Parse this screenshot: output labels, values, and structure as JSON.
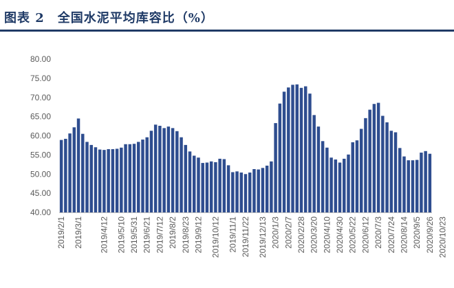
{
  "figure_title": "图表 2　全国水泥平均库容比（%）",
  "chart_data": {
    "type": "bar",
    "title": "",
    "xlabel": "",
    "ylabel": "",
    "ylim": [
      40,
      80
    ],
    "y_ticks": [
      "40.00",
      "45.00",
      "50.00",
      "55.00",
      "60.00",
      "65.00",
      "70.00",
      "75.00",
      "80.00"
    ],
    "y_tick_values": [
      40,
      45,
      50,
      55,
      60,
      65,
      70,
      75,
      80
    ],
    "bar_color": "#2e4d8f",
    "grid": false,
    "x_tick_labels": [
      {
        "index": 0,
        "label": "2019/2/1"
      },
      {
        "index": 4,
        "label": "2019/3/1"
      },
      {
        "index": 10,
        "label": "2019/4/12"
      },
      {
        "index": 14,
        "label": "2019/5/10"
      },
      {
        "index": 17,
        "label": "2019/5/31"
      },
      {
        "index": 20,
        "label": "2019/6/21"
      },
      {
        "index": 23,
        "label": "2019/7/12"
      },
      {
        "index": 26,
        "label": "2019/8/2"
      },
      {
        "index": 29,
        "label": "2019/8/23"
      },
      {
        "index": 32,
        "label": "2019/9/12"
      },
      {
        "index": 36,
        "label": "2019/10/12"
      },
      {
        "index": 40,
        "label": "2019/11/1"
      },
      {
        "index": 43,
        "label": "2019/11/22"
      },
      {
        "index": 47,
        "label": "2019/12/13"
      },
      {
        "index": 50,
        "label": "2020/1/3"
      },
      {
        "index": 53,
        "label": "2020/2/7"
      },
      {
        "index": 56,
        "label": "2020/2/28"
      },
      {
        "index": 59,
        "label": "2020/3/20"
      },
      {
        "index": 62,
        "label": "2020/4/10"
      },
      {
        "index": 65,
        "label": "2020/4/30"
      },
      {
        "index": 68,
        "label": "2020/5/22"
      },
      {
        "index": 71,
        "label": "2020/6/12"
      },
      {
        "index": 74,
        "label": "2020/7/3"
      },
      {
        "index": 77,
        "label": "2020/7/24"
      },
      {
        "index": 80,
        "label": "2020/8/14"
      },
      {
        "index": 83,
        "label": "2020/9/5"
      },
      {
        "index": 86,
        "label": "2020/9/26"
      },
      {
        "index": 89,
        "label": "2020/10/23"
      }
    ],
    "values": [
      58.9,
      59.2,
      60.6,
      62.2,
      64.5,
      60.5,
      58.4,
      57.6,
      57.0,
      56.4,
      56.3,
      56.5,
      56.5,
      56.6,
      56.9,
      57.8,
      57.8,
      57.9,
      58.4,
      59.0,
      59.6,
      61.3,
      62.9,
      62.6,
      62.0,
      62.4,
      62.0,
      61.2,
      59.6,
      57.6,
      55.9,
      54.8,
      54.3,
      52.9,
      53.0,
      53.3,
      53.1,
      54.0,
      53.9,
      52.3,
      50.5,
      50.7,
      50.4,
      50.0,
      50.4,
      51.3,
      51.2,
      51.6,
      52.2,
      53.3,
      63.3,
      68.4,
      71.5,
      72.6,
      73.3,
      73.4,
      72.5,
      72.9,
      71.0,
      65.4,
      62.4,
      58.6,
      56.9,
      54.3,
      53.8,
      53.0,
      54.0,
      55.1,
      58.3,
      58.8,
      61.8,
      64.6,
      66.8,
      68.3,
      68.6,
      65.2,
      63.5,
      61.3,
      60.9,
      56.8,
      54.6,
      53.6,
      53.6,
      53.7,
      55.6,
      56.0,
      55.3
    ]
  }
}
